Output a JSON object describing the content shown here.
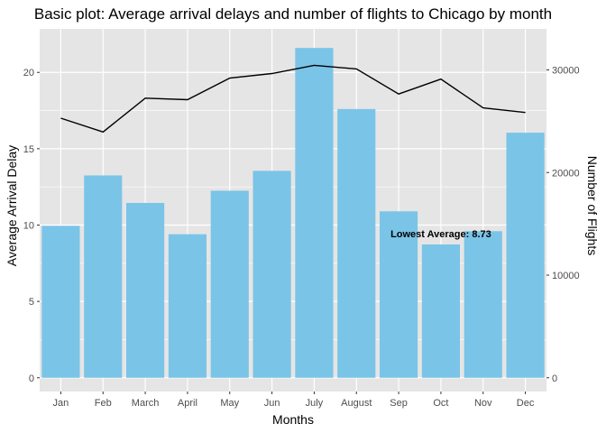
{
  "chart_data": {
    "type": "bar",
    "title": "Basic plot: Average arrival delays and number of flights to Chicago by month",
    "xlabel": "Months",
    "ylabel": "Average Arrival Delay",
    "y2label": "Number of Flights",
    "categories": [
      "Jan",
      "Feb",
      "March",
      "April",
      "May",
      "Jun",
      "July",
      "August",
      "Sep",
      "Oct",
      "Nov",
      "Dec"
    ],
    "series": [
      {
        "type": "bar",
        "axis": "left",
        "values": [
          9.95,
          13.25,
          11.45,
          9.4,
          12.25,
          13.55,
          21.6,
          17.6,
          10.9,
          8.73,
          9.6,
          16.05
        ]
      },
      {
        "type": "line",
        "axis": "right",
        "values": [
          25300,
          23950,
          27250,
          27100,
          29200,
          29650,
          30450,
          30100,
          27650,
          29100,
          26300,
          25850
        ]
      }
    ],
    "ylim": [
      -0.9,
      22.85
    ],
    "y2lim": [
      -1340,
      34000
    ],
    "yticks": [
      0,
      5,
      10,
      15,
      20
    ],
    "y2ticks": [
      0,
      10000,
      20000,
      30000
    ],
    "ytick_labels": [
      "0",
      "5",
      "10",
      "15",
      "20"
    ],
    "y2tick_labels": [
      "0",
      "10000",
      "20000",
      "30000"
    ],
    "annotation": {
      "text": "Lowest Average: 8.73",
      "x": "Oct",
      "y": 9.2
    },
    "grid": true,
    "colors": {
      "bar": "#7ac4e7",
      "line": "#000000",
      "panel": "#e5e5e5",
      "grid": "#ffffff"
    }
  }
}
